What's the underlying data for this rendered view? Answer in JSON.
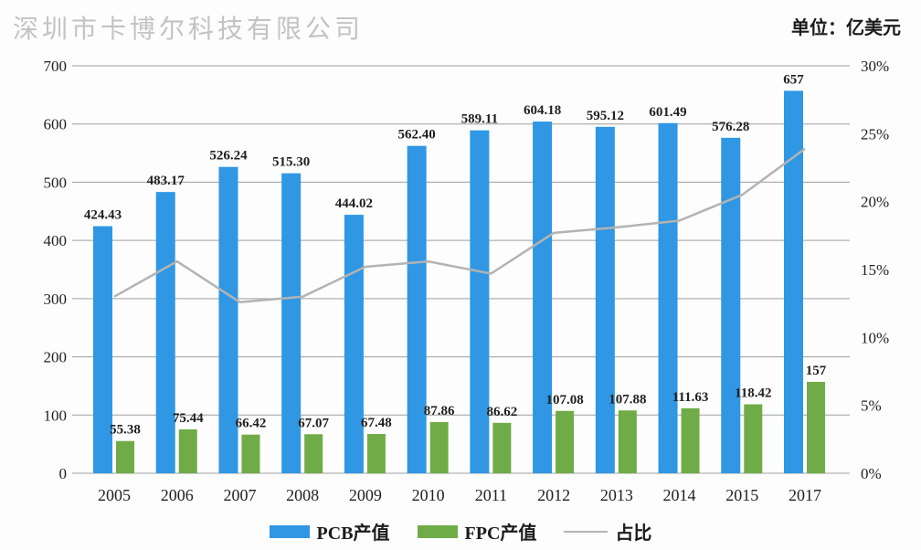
{
  "watermark": "深圳市卡博尔科技有限公司",
  "unit_label": "单位：亿美元",
  "colors": {
    "pcb_bar": "#2f97e4",
    "fpc_bar": "#6fac47",
    "ratio_line": "#b3b3b3",
    "gridline": "#9e9e9e",
    "label_text": "#1f1f1f",
    "watermark_text": "#c3c3c3"
  },
  "legend": [
    {
      "label": "PCB产值",
      "type": "bar",
      "color": "#2f97e4"
    },
    {
      "label": "FPC产值",
      "type": "bar",
      "color": "#6fac47"
    },
    {
      "label": "占比",
      "type": "line",
      "color": "#b3b3b3"
    }
  ],
  "chart_data": {
    "type": "bar",
    "title": "",
    "xlabel": "",
    "ylabel_left": "亿美元",
    "ylabel_right": "占比",
    "grid": true,
    "legend_position": "bottom",
    "categories": [
      "2005",
      "2006",
      "2007",
      "2008",
      "2009",
      "2010",
      "2011",
      "2012",
      "2013",
      "2014",
      "2015",
      "2017"
    ],
    "series": [
      {
        "name": "PCB产值",
        "type": "bar",
        "axis": "left",
        "color": "#2f97e4",
        "values": [
          424.43,
          483.17,
          526.24,
          515.3,
          444.02,
          562.4,
          589.11,
          604.18,
          595.12,
          601.49,
          576.28,
          657
        ],
        "labels": [
          "424.43",
          "483.17",
          "526.24",
          "515.30",
          "444.02",
          "562.40",
          "589.11",
          "604.18",
          "595.12",
          "601.49",
          "576.28",
          "657"
        ]
      },
      {
        "name": "FPC产值",
        "type": "bar",
        "axis": "left",
        "color": "#6fac47",
        "values": [
          55.38,
          75.44,
          66.42,
          67.07,
          67.48,
          87.86,
          86.62,
          107.08,
          107.88,
          111.63,
          118.42,
          157
        ],
        "labels": [
          "55.38",
          "75.44",
          "66.42",
          "67.07",
          "67.48",
          "87.86",
          "86.62",
          "107.08",
          "107.88",
          "111.63",
          "118.42",
          "157"
        ]
      },
      {
        "name": "占比",
        "type": "line",
        "axis": "right",
        "color": "#b3b3b3",
        "values": [
          13.0,
          15.6,
          12.6,
          13.0,
          15.2,
          15.6,
          14.7,
          17.7,
          18.1,
          18.6,
          20.5,
          23.9
        ]
      }
    ],
    "left_axis": {
      "min": 0,
      "max": 700,
      "tick_step": 100,
      "ticks": [
        "0",
        "100",
        "200",
        "300",
        "400",
        "500",
        "600",
        "700"
      ]
    },
    "right_axis": {
      "min": 0,
      "max": 30,
      "tick_step": 5,
      "ticks": [
        "0%",
        "5%",
        "10%",
        "15%",
        "20%",
        "25%",
        "30%"
      ]
    }
  }
}
